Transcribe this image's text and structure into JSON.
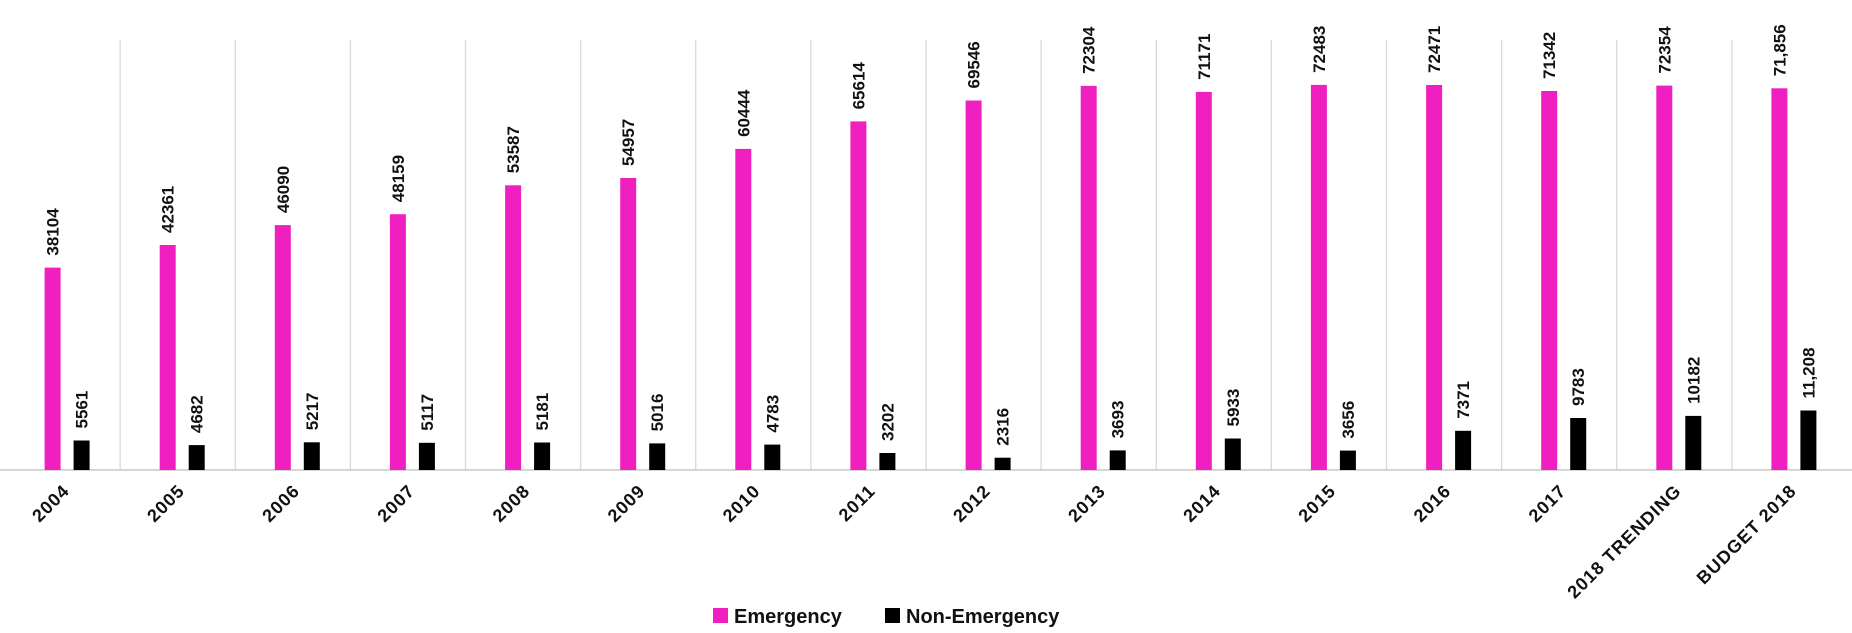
{
  "chart_data": {
    "type": "bar",
    "title": "",
    "xlabel": "",
    "ylabel": "",
    "categories": [
      "2004",
      "2005",
      "2006",
      "2007",
      "2008",
      "2009",
      "2010",
      "2011",
      "2012",
      "2013",
      "2014",
      "2015",
      "2016",
      "2017",
      "2018 TRENDING",
      "BUDGET 2018"
    ],
    "series": [
      {
        "name": "Emergency",
        "color": "#f020c0",
        "values": [
          38104,
          42361,
          46090,
          48159,
          53587,
          54957,
          60444,
          65614,
          69546,
          72304,
          71171,
          72483,
          72471,
          71342,
          72354,
          71856
        ],
        "labels": [
          "38104",
          "42361",
          "46090",
          "48159",
          "53587",
          "54957",
          "60444",
          "65614",
          "69546",
          "72304",
          "71171",
          "72483",
          "72471",
          "71342",
          "72354",
          "71,856"
        ]
      },
      {
        "name": "Non-Emergency",
        "color": "#000000",
        "values": [
          5561,
          4682,
          5217,
          5117,
          5181,
          5016,
          4783,
          3202,
          2316,
          3693,
          5933,
          3656,
          7371,
          9783,
          10182,
          11208
        ],
        "labels": [
          "5561",
          "4682",
          "5217",
          "5117",
          "5181",
          "5016",
          "4783",
          "3202",
          "2316",
          "3693",
          "5933",
          "3656",
          "7371",
          "9783",
          "10182",
          "11,208"
        ]
      }
    ],
    "ylim": [
      0,
      80000
    ],
    "grid": "vertical category separators",
    "legend": "bottom-center"
  }
}
